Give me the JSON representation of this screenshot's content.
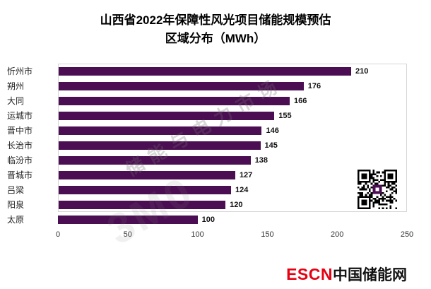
{
  "title": {
    "line1": "山西省2022年保障性风光项目储能规模预估",
    "line2": "区域分布（MWh）"
  },
  "chart_data": {
    "type": "bar",
    "orientation": "horizontal",
    "title": "山西省2022年保障性风光项目储能规模预估 区域分布（MWh）",
    "categories": [
      "忻州市",
      "朔州",
      "大同",
      "运城市",
      "晋中市",
      "长治市",
      "临汾市",
      "晋城市",
      "吕梁",
      "阳泉",
      "太原"
    ],
    "values": [
      210,
      176,
      166,
      155,
      146,
      145,
      138,
      127,
      124,
      120,
      100
    ],
    "xlim": [
      0,
      250
    ],
    "ticks": [
      0,
      50,
      100,
      150,
      200,
      250
    ],
    "bar_color": "#4B0E52",
    "unit": "MWh",
    "legend": "none",
    "grid": "off"
  },
  "watermark": {
    "text": "储能与电力市场",
    "logo_text": "3M0"
  },
  "footer": {
    "brand_en": "ESCN",
    "brand_en_color": "#E60012",
    "brand_cn": "中国储能网"
  }
}
